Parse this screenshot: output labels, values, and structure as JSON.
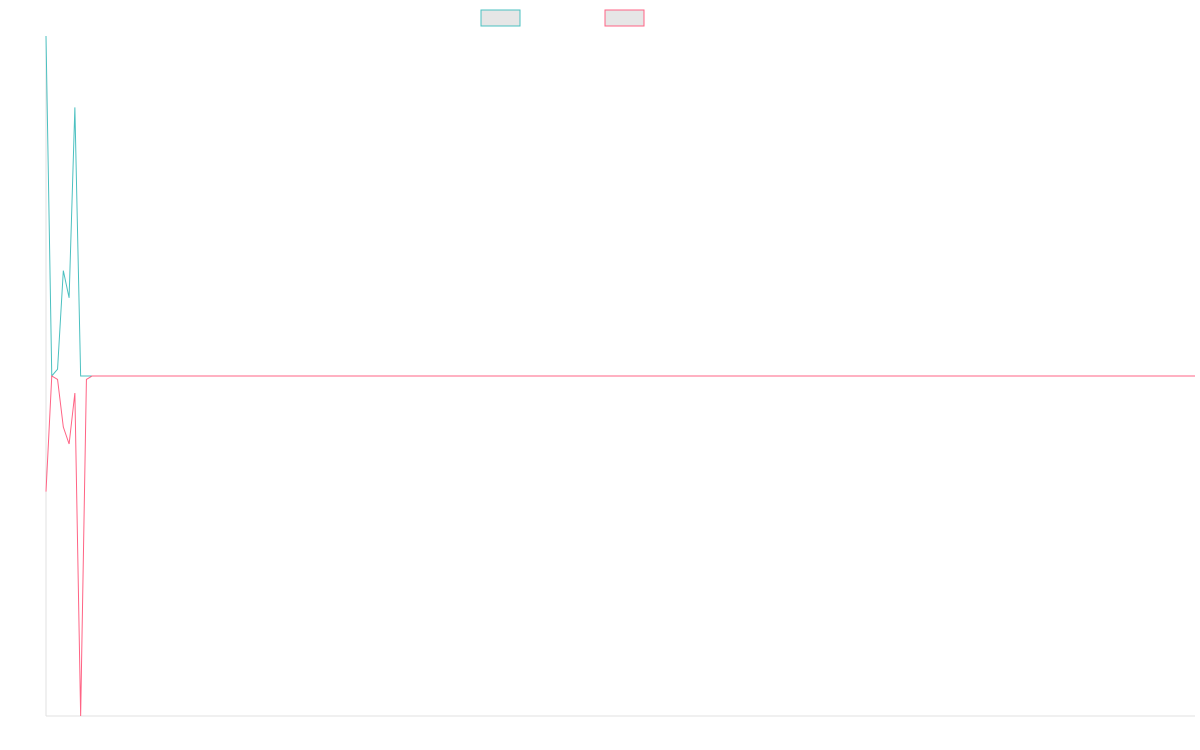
{
  "chart_data": {
    "type": "line",
    "title": "",
    "xlabel": "",
    "ylabel": "",
    "grid": false,
    "legend_placement": "top-center",
    "x": [
      0,
      1,
      2,
      3,
      4,
      5,
      6,
      7,
      8,
      199
    ],
    "ylim": [
      -1.0,
      1.0
    ],
    "series": [
      {
        "name": "",
        "color": "#4bc0c0",
        "fill": "#e6e6e6",
        "values": [
          1.0,
          0.0,
          0.02,
          0.31,
          0.23,
          0.79,
          0.0,
          0.0,
          0.0,
          0.0
        ]
      },
      {
        "name": "",
        "color": "#ff6384",
        "fill": "#e6e6e6",
        "values": [
          -0.34,
          0.0,
          -0.01,
          -0.15,
          -0.2,
          -0.05,
          -1.0,
          -0.01,
          0.0,
          0.0
        ]
      }
    ]
  }
}
